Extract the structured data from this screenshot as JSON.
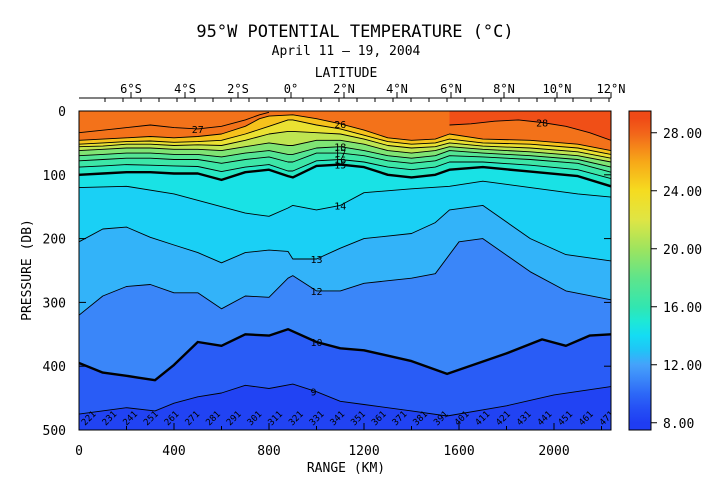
{
  "chart_data": {
    "type": "heatmap",
    "title": "95°W POTENTIAL TEMPERATURE (°C)",
    "subtitle": "April 11 – 19, 2004",
    "xlabel": "RANGE (KM)",
    "ylabel": "PRESSURE (DB)",
    "top_axis_label": "LATITUDE",
    "xlim": [
      0,
      2240
    ],
    "ylim": [
      500,
      0
    ],
    "x_ticks": [
      0,
      400,
      800,
      1200,
      1600,
      2000
    ],
    "y_ticks": [
      0,
      100,
      200,
      300,
      400,
      500
    ],
    "latitude_ticks": [
      "6°S",
      "4°S",
      "2°S",
      "0°",
      "2°N",
      "4°N",
      "6°N",
      "8°N",
      "10°N",
      "12°N"
    ],
    "colorbar": {
      "ticks": [
        "28.00",
        "24.00",
        "20.00",
        "16.00",
        "12.00",
        "8.00"
      ],
      "range": [
        7.5,
        29.5
      ]
    },
    "isotherms": [
      {
        "value": 10,
        "label": "10",
        "bold": true,
        "points": [
          [
            0,
            395
          ],
          [
            100,
            410
          ],
          [
            200,
            415
          ],
          [
            250,
            418
          ],
          [
            320,
            422
          ],
          [
            400,
            398
          ],
          [
            500,
            362
          ],
          [
            600,
            368
          ],
          [
            700,
            350
          ],
          [
            800,
            352
          ],
          [
            880,
            342
          ],
          [
            1000,
            362
          ],
          [
            1100,
            372
          ],
          [
            1200,
            375
          ],
          [
            1400,
            392
          ],
          [
            1550,
            412
          ],
          [
            1800,
            380
          ],
          [
            1950,
            358
          ],
          [
            2050,
            368
          ],
          [
            2150,
            352
          ],
          [
            2240,
            350
          ]
        ]
      },
      {
        "value": 12,
        "label": "12",
        "points": [
          [
            0,
            320
          ],
          [
            100,
            290
          ],
          [
            200,
            275
          ],
          [
            300,
            272
          ],
          [
            400,
            285
          ],
          [
            500,
            285
          ],
          [
            600,
            310
          ],
          [
            700,
            290
          ],
          [
            800,
            292
          ],
          [
            880,
            262
          ],
          [
            900,
            258
          ],
          [
            1000,
            282
          ],
          [
            1100,
            282
          ],
          [
            1200,
            270
          ],
          [
            1400,
            262
          ],
          [
            1500,
            255
          ],
          [
            1600,
            205
          ],
          [
            1700,
            200
          ],
          [
            1900,
            252
          ],
          [
            2050,
            282
          ],
          [
            2240,
            296
          ]
        ]
      },
      {
        "value": 13,
        "label": "13",
        "points": [
          [
            0,
            205
          ],
          [
            100,
            185
          ],
          [
            200,
            182
          ],
          [
            300,
            198
          ],
          [
            400,
            210
          ],
          [
            500,
            222
          ],
          [
            600,
            238
          ],
          [
            700,
            222
          ],
          [
            800,
            218
          ],
          [
            880,
            220
          ],
          [
            900,
            232
          ],
          [
            1000,
            232
          ],
          [
            1100,
            215
          ],
          [
            1200,
            200
          ],
          [
            1400,
            192
          ],
          [
            1500,
            175
          ],
          [
            1560,
            155
          ],
          [
            1700,
            148
          ],
          [
            1900,
            200
          ],
          [
            2050,
            225
          ],
          [
            2240,
            235
          ]
        ]
      },
      {
        "value": 14,
        "label": "14",
        "points": [
          [
            0,
            120
          ],
          [
            200,
            118
          ],
          [
            400,
            130
          ],
          [
            600,
            150
          ],
          [
            700,
            160
          ],
          [
            800,
            165
          ],
          [
            880,
            152
          ],
          [
            900,
            148
          ],
          [
            1000,
            155
          ],
          [
            1100,
            148
          ],
          [
            1200,
            128
          ],
          [
            1400,
            122
          ],
          [
            1560,
            118
          ],
          [
            1700,
            110
          ],
          [
            1900,
            120
          ],
          [
            2100,
            130
          ],
          [
            2240,
            135
          ]
        ]
      },
      {
        "value": 15,
        "label": "15",
        "bold": true,
        "points": [
          [
            0,
            100
          ],
          [
            100,
            98
          ],
          [
            200,
            96
          ],
          [
            300,
            96
          ],
          [
            400,
            98
          ],
          [
            500,
            98
          ],
          [
            600,
            108
          ],
          [
            700,
            96
          ],
          [
            800,
            92
          ],
          [
            880,
            102
          ],
          [
            900,
            104
          ],
          [
            1000,
            86
          ],
          [
            1100,
            84
          ],
          [
            1200,
            88
          ],
          [
            1300,
            100
          ],
          [
            1400,
            104
          ],
          [
            1500,
            100
          ],
          [
            1560,
            92
          ],
          [
            1700,
            88
          ],
          [
            1900,
            95
          ],
          [
            2100,
            102
          ],
          [
            2240,
            118
          ]
        ]
      },
      {
        "value": 16,
        "label": "16",
        "points": [
          [
            0,
            88
          ],
          [
            100,
            86
          ],
          [
            200,
            84
          ],
          [
            300,
            85
          ],
          [
            400,
            86
          ],
          [
            500,
            87
          ],
          [
            600,
            95
          ],
          [
            700,
            88
          ],
          [
            800,
            84
          ],
          [
            880,
            94
          ],
          [
            900,
            94
          ],
          [
            1000,
            78
          ],
          [
            1100,
            76
          ],
          [
            1200,
            80
          ],
          [
            1300,
            88
          ],
          [
            1400,
            92
          ],
          [
            1500,
            88
          ],
          [
            1560,
            80
          ],
          [
            1700,
            80
          ],
          [
            1900,
            85
          ],
          [
            2100,
            92
          ],
          [
            2240,
            106
          ]
        ]
      },
      {
        "value": 17,
        "label": "17",
        "points": [
          [
            0,
            78
          ],
          [
            100,
            76
          ],
          [
            200,
            74
          ],
          [
            300,
            74
          ],
          [
            400,
            76
          ],
          [
            500,
            76
          ],
          [
            600,
            82
          ],
          [
            700,
            76
          ],
          [
            800,
            72
          ],
          [
            880,
            80
          ],
          [
            900,
            80
          ],
          [
            1000,
            66
          ],
          [
            1100,
            66
          ],
          [
            1200,
            70
          ],
          [
            1300,
            78
          ],
          [
            1400,
            82
          ],
          [
            1500,
            78
          ],
          [
            1560,
            70
          ],
          [
            1700,
            72
          ],
          [
            1900,
            76
          ],
          [
            2100,
            82
          ],
          [
            2240,
            96
          ]
        ]
      },
      {
        "value": 18,
        "label": "18",
        "points": [
          [
            0,
            70
          ],
          [
            100,
            68
          ],
          [
            200,
            66
          ],
          [
            300,
            66
          ],
          [
            400,
            68
          ],
          [
            500,
            68
          ],
          [
            600,
            72
          ],
          [
            700,
            66
          ],
          [
            800,
            62
          ],
          [
            880,
            68
          ],
          [
            900,
            68
          ],
          [
            1000,
            58
          ],
          [
            1100,
            56
          ],
          [
            1200,
            62
          ],
          [
            1300,
            70
          ],
          [
            1400,
            74
          ],
          [
            1500,
            70
          ],
          [
            1560,
            62
          ],
          [
            1700,
            66
          ],
          [
            1900,
            70
          ],
          [
            2100,
            76
          ],
          [
            2240,
            88
          ]
        ]
      },
      {
        "value": 20,
        "label": "",
        "points": [
          [
            0,
            62
          ],
          [
            100,
            60
          ],
          [
            200,
            58
          ],
          [
            300,
            58
          ],
          [
            400,
            60
          ],
          [
            500,
            60
          ],
          [
            600,
            62
          ],
          [
            700,
            56
          ],
          [
            800,
            50
          ],
          [
            880,
            54
          ],
          [
            900,
            54
          ],
          [
            1000,
            46
          ],
          [
            1100,
            46
          ],
          [
            1200,
            52
          ],
          [
            1300,
            62
          ],
          [
            1400,
            66
          ],
          [
            1500,
            62
          ],
          [
            1560,
            56
          ],
          [
            1700,
            60
          ],
          [
            1900,
            64
          ],
          [
            2100,
            70
          ],
          [
            2240,
            80
          ]
        ]
      },
      {
        "value": 22,
        "label": "",
        "points": [
          [
            0,
            56
          ],
          [
            100,
            55
          ],
          [
            200,
            52
          ],
          [
            300,
            52
          ],
          [
            400,
            54
          ],
          [
            500,
            53
          ],
          [
            600,
            54
          ],
          [
            700,
            46
          ],
          [
            800,
            36
          ],
          [
            880,
            32
          ],
          [
            900,
            32
          ],
          [
            1000,
            34
          ],
          [
            1100,
            36
          ],
          [
            1200,
            44
          ],
          [
            1300,
            54
          ],
          [
            1400,
            58
          ],
          [
            1500,
            56
          ],
          [
            1560,
            50
          ],
          [
            1700,
            55
          ],
          [
            1900,
            58
          ],
          [
            2100,
            64
          ],
          [
            2240,
            74
          ]
        ]
      },
      {
        "value": 24,
        "label": "",
        "points": [
          [
            0,
            52
          ],
          [
            100,
            50
          ],
          [
            200,
            48
          ],
          [
            300,
            47
          ],
          [
            400,
            49
          ],
          [
            500,
            48
          ],
          [
            600,
            46
          ],
          [
            700,
            36
          ],
          [
            800,
            24
          ],
          [
            880,
            14
          ],
          [
            900,
            14
          ],
          [
            1000,
            22
          ],
          [
            1100,
            28
          ],
          [
            1200,
            38
          ],
          [
            1300,
            48
          ],
          [
            1400,
            52
          ],
          [
            1500,
            50
          ],
          [
            1560,
            44
          ],
          [
            1700,
            50
          ],
          [
            1900,
            52
          ],
          [
            2100,
            58
          ],
          [
            2240,
            68
          ]
        ]
      },
      {
        "value": 26,
        "label": "26",
        "points": [
          [
            0,
            46
          ],
          [
            100,
            44
          ],
          [
            200,
            42
          ],
          [
            300,
            40
          ],
          [
            400,
            42
          ],
          [
            500,
            40
          ],
          [
            600,
            36
          ],
          [
            700,
            24
          ],
          [
            760,
            12
          ],
          [
            800,
            8
          ],
          [
            900,
            6
          ],
          [
            1000,
            12
          ],
          [
            1100,
            20
          ],
          [
            1200,
            30
          ],
          [
            1300,
            42
          ],
          [
            1400,
            46
          ],
          [
            1500,
            44
          ],
          [
            1560,
            36
          ],
          [
            1700,
            44
          ],
          [
            1900,
            46
          ],
          [
            2100,
            52
          ],
          [
            2240,
            62
          ]
        ]
      },
      {
        "value": 27,
        "label": "27",
        "points": [
          [
            0,
            34
          ],
          [
            150,
            28
          ],
          [
            300,
            22
          ],
          [
            400,
            26
          ],
          [
            500,
            28
          ],
          [
            600,
            24
          ],
          [
            700,
            14
          ],
          [
            760,
            6
          ],
          [
            800,
            2
          ]
        ]
      },
      {
        "value": 28,
        "label": "28",
        "points": [
          [
            1560,
            22
          ],
          [
            1650,
            20
          ],
          [
            1750,
            16
          ],
          [
            1850,
            14
          ],
          [
            1950,
            18
          ],
          [
            2050,
            24
          ],
          [
            2150,
            34
          ],
          [
            2240,
            46
          ]
        ]
      },
      {
        "value": 9,
        "label": "9",
        "points": [
          [
            0,
            475
          ],
          [
            200,
            465
          ],
          [
            320,
            470
          ],
          [
            400,
            458
          ],
          [
            500,
            448
          ],
          [
            600,
            442
          ],
          [
            700,
            430
          ],
          [
            800,
            435
          ],
          [
            900,
            428
          ],
          [
            1000,
            440
          ],
          [
            1100,
            455
          ],
          [
            1200,
            460
          ],
          [
            1400,
            470
          ],
          [
            1550,
            478
          ],
          [
            1800,
            462
          ],
          [
            2000,
            445
          ],
          [
            2240,
            432
          ]
        ]
      }
    ],
    "station_labels": [
      "221",
      "231",
      "241",
      "251",
      "261",
      "271",
      "281",
      "291",
      "301",
      "311",
      "321",
      "331",
      "341",
      "351",
      "361",
      "371",
      "381",
      "391",
      "401",
      "411",
      "421",
      "431",
      "441",
      "451",
      "461",
      "471"
    ]
  }
}
